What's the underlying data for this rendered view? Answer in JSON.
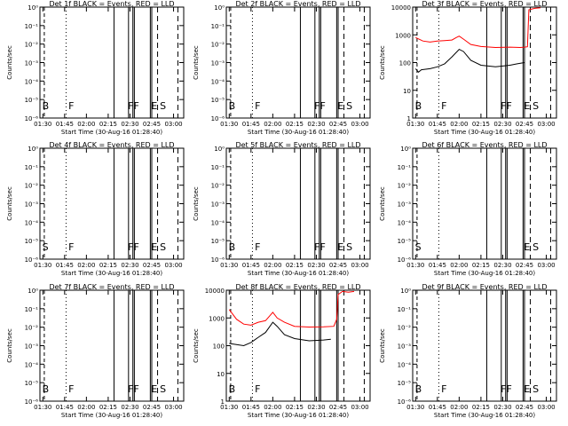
{
  "chart_data": [
    {
      "type": "line",
      "title": "Det 1f BLACK = Events, RED = LLD",
      "ylabel": "Counts/sec",
      "xlabel": "Start Time (30-Aug-16 01:28:40)",
      "x_ticks": [
        "01:30",
        "01:45",
        "02:00",
        "02:15",
        "02:30",
        "02:45",
        "03:00"
      ],
      "y_ticks": [
        "10⁰",
        "10⁻¹",
        "10⁻²",
        "10⁻³",
        "10⁻⁴",
        "10⁻⁵",
        "10⁻⁶"
      ],
      "scale": "log",
      "ylim": [
        1e-06,
        1
      ],
      "markers": [
        "B",
        "F",
        "FF",
        "E",
        "S"
      ],
      "series": []
    },
    {
      "type": "line",
      "title": "Det 2f BLACK = Events, RED = LLD",
      "ylabel": "Counts/sec",
      "xlabel": "Start Time (30-Aug-16 01:28:40)",
      "x_ticks": [
        "01:30",
        "01:45",
        "02:00",
        "02:15",
        "02:30",
        "02:45",
        "03:00"
      ],
      "y_ticks": [
        "10⁰",
        "10⁻¹",
        "10⁻²",
        "10⁻³",
        "10⁻⁴",
        "10⁻⁵",
        "10⁻⁶"
      ],
      "scale": "log",
      "ylim": [
        1e-06,
        1
      ],
      "markers": [
        "B",
        "F",
        "FF",
        "E",
        "S"
      ],
      "series": []
    },
    {
      "type": "line",
      "title": "Det 3f BLACK = Events, RED = LLD",
      "ylabel": "Counts/sec",
      "xlabel": "Start Time (30-Aug-16 01:28:40)",
      "x_ticks": [
        "01:30",
        "01:45",
        "02:00",
        "02:15",
        "02:30",
        "02:45",
        "03:00"
      ],
      "y_ticks": [
        "10000",
        "1000",
        "100",
        "10",
        "1"
      ],
      "scale": "log",
      "ylim": [
        1,
        10000
      ],
      "markers": [
        "B",
        "F",
        "FF",
        "E",
        "S"
      ],
      "series": [
        {
          "color": "#ff0000",
          "x": [
            "01:30",
            "01:35",
            "01:40",
            "01:45",
            "01:50",
            "01:55",
            "01:58",
            "02:00",
            "02:03",
            "02:08",
            "02:15",
            "02:25",
            "02:35",
            "02:42",
            "02:45",
            "02:47",
            "02:48",
            "02:52",
            "02:56"
          ],
          "y": [
            800,
            600,
            550,
            600,
            620,
            650,
            800,
            900,
            700,
            450,
            380,
            350,
            360,
            350,
            360,
            370,
            8000,
            9000,
            9500
          ]
        },
        {
          "color": "#000000",
          "x": [
            "01:30",
            "01:32",
            "01:34",
            "01:40",
            "01:45",
            "01:50",
            "01:55",
            "02:00",
            "02:03",
            "02:08",
            "02:15",
            "02:25",
            "02:30",
            "02:35",
            "02:40",
            "02:45"
          ],
          "y": [
            60,
            45,
            55,
            60,
            70,
            90,
            160,
            300,
            250,
            120,
            80,
            70,
            75,
            80,
            90,
            100
          ]
        }
      ]
    },
    {
      "type": "line",
      "title": "Det 4f BLACK = Events, RED = LLD",
      "ylabel": "Counts/sec",
      "xlabel": "Start Time (30-Aug-16 01:28:40)",
      "x_ticks": [
        "01:30",
        "01:45",
        "02:00",
        "02:15",
        "02:30",
        "02:45",
        "03:00"
      ],
      "y_ticks": [
        "10⁰",
        "10⁻¹",
        "10⁻²",
        "10⁻³",
        "10⁻⁴",
        "10⁻⁵",
        "10⁻⁶"
      ],
      "scale": "log",
      "ylim": [
        1e-06,
        1
      ],
      "markers": [
        "S",
        "F",
        "FF",
        "E",
        "S"
      ],
      "series": []
    },
    {
      "type": "line",
      "title": "Det 5f BLACK = Events, RED = LLD",
      "ylabel": "Counts/sec",
      "xlabel": "Start Time (30-Aug-16 01:28:40)",
      "x_ticks": [
        "01:30",
        "01:45",
        "02:00",
        "02:15",
        "02:30",
        "02:45",
        "03:00"
      ],
      "y_ticks": [
        "10⁰",
        "10⁻¹",
        "10⁻²",
        "10⁻³",
        "10⁻⁴",
        "10⁻⁵",
        "10⁻⁶"
      ],
      "scale": "log",
      "ylim": [
        1e-06,
        1
      ],
      "markers": [
        "B",
        "F",
        "FF",
        "E",
        "S"
      ],
      "series": []
    },
    {
      "type": "line",
      "title": "Det 6f BLACK = Events, RED = LLD",
      "ylabel": "Counts/sec",
      "xlabel": "Start Time (30-Aug-16 01:28:40)",
      "x_ticks": [
        "01:30",
        "01:45",
        "02:00",
        "02:15",
        "02:30",
        "02:45",
        "03:00"
      ],
      "y_ticks": [
        "10⁰",
        "10⁻¹",
        "10⁻²",
        "10⁻³",
        "10⁻⁴",
        "10⁻⁵",
        "10⁻⁶"
      ],
      "scale": "log",
      "ylim": [
        1e-06,
        1
      ],
      "markers": [
        "S",
        "",
        "",
        "E",
        "S"
      ],
      "series": []
    },
    {
      "type": "line",
      "title": "Det 7f BLACK = Events, RED = LLD",
      "ylabel": "Counts/sec",
      "xlabel": "Start Time (30-Aug-16 01:28:40)",
      "x_ticks": [
        "01:30",
        "01:45",
        "02:00",
        "02:15",
        "02:30",
        "02:45",
        "03:00"
      ],
      "y_ticks": [
        "10⁰",
        "10⁻¹",
        "10⁻²",
        "10⁻³",
        "10⁻⁴",
        "10⁻⁵",
        "10⁻⁶"
      ],
      "scale": "log",
      "ylim": [
        1e-06,
        1
      ],
      "markers": [
        "B",
        "F",
        "FF",
        "E",
        "S"
      ],
      "series": []
    },
    {
      "type": "line",
      "title": "Det 8f BLACK = Events, RED = LLD",
      "ylabel": "Counts/sec",
      "xlabel": "Start Time (30-Aug-16 01:28:40)",
      "x_ticks": [
        "01:30",
        "01:45",
        "02:00",
        "02:15",
        "02:30",
        "02:45",
        "03:00"
      ],
      "y_ticks": [
        "10000",
        "1000",
        "100",
        "10",
        "1"
      ],
      "scale": "log",
      "ylim": [
        1,
        10000
      ],
      "markers": [
        "B",
        "F",
        "",
        "",
        ""
      ],
      "series": [
        {
          "color": "#ff0000",
          "x": [
            "01:30",
            "01:35",
            "01:40",
            "01:45",
            "01:50",
            "01:55",
            "02:00",
            "02:03",
            "02:08",
            "02:15",
            "02:25",
            "02:35",
            "02:42",
            "02:44",
            "02:45",
            "02:48",
            "02:52",
            "02:56"
          ],
          "y": [
            2000,
            900,
            600,
            550,
            700,
            800,
            1600,
            1000,
            700,
            500,
            470,
            480,
            500,
            900,
            7000,
            9000,
            8500,
            9000
          ]
        },
        {
          "color": "#000000",
          "x": [
            "01:30",
            "01:35",
            "01:40",
            "01:45",
            "01:50",
            "01:55",
            "02:00",
            "02:03",
            "02:08",
            "02:15",
            "02:25",
            "02:35",
            "02:40"
          ],
          "y": [
            120,
            110,
            100,
            130,
            200,
            300,
            700,
            500,
            250,
            180,
            150,
            160,
            170
          ]
        }
      ]
    },
    {
      "type": "line",
      "title": "Det 9f BLACK = Events, RED = LLD",
      "ylabel": "Counts/sec",
      "xlabel": "Start Time (30-Aug-16 01:28:40)",
      "x_ticks": [
        "01:30",
        "01:45",
        "02:00",
        "02:15",
        "02:30",
        "02:45",
        "03:00"
      ],
      "y_ticks": [
        "10⁰",
        "10⁻¹",
        "10⁻²",
        "10⁻³",
        "10⁻⁴",
        "10⁻⁵",
        "10⁻⁶"
      ],
      "scale": "log",
      "ylim": [
        1e-06,
        1
      ],
      "markers": [
        "B",
        "F",
        "FF",
        "E",
        "S"
      ],
      "series": []
    }
  ]
}
